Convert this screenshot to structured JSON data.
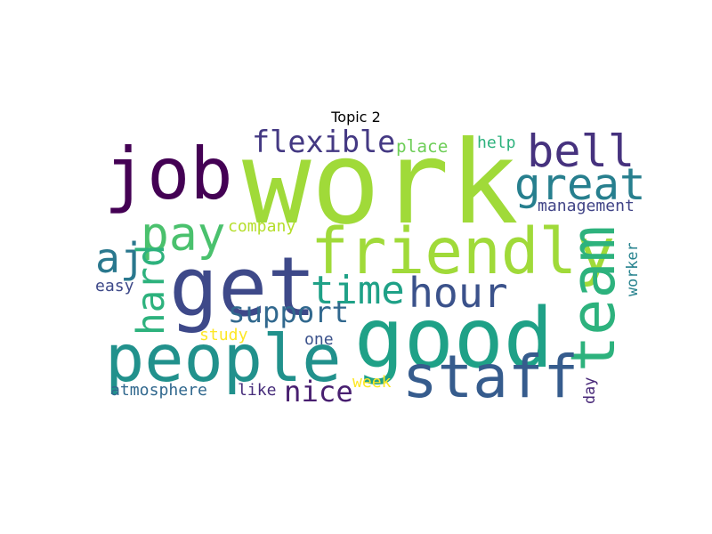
{
  "chart_data": {
    "type": "wordcloud",
    "title": "Topic 2",
    "words": [
      {
        "text": "work",
        "weight": 100,
        "color": "#a0da39",
        "orientation": "horizontal"
      },
      {
        "text": "good",
        "weight": 72,
        "color": "#1fa187",
        "orientation": "horizontal"
      },
      {
        "text": "get",
        "weight": 71,
        "color": "#3e4989",
        "orientation": "horizontal"
      },
      {
        "text": "job",
        "weight": 62,
        "color": "#440154",
        "orientation": "horizontal"
      },
      {
        "text": "people",
        "weight": 57,
        "color": "#21918c",
        "orientation": "horizontal"
      },
      {
        "text": "friendly",
        "weight": 55,
        "color": "#a0da39",
        "orientation": "horizontal"
      },
      {
        "text": "team",
        "weight": 53,
        "color": "#2db27d",
        "orientation": "vertical"
      },
      {
        "text": "staff",
        "weight": 51,
        "color": "#365c8d",
        "orientation": "horizontal"
      },
      {
        "text": "pay",
        "weight": 41,
        "color": "#4ac16d",
        "orientation": "horizontal"
      },
      {
        "text": "bell",
        "weight": 39,
        "color": "#46327e",
        "orientation": "horizontal"
      },
      {
        "text": "great",
        "weight": 38,
        "color": "#277f8e",
        "orientation": "horizontal"
      },
      {
        "text": "aj",
        "weight": 36,
        "color": "#2a788e",
        "orientation": "horizontal"
      },
      {
        "text": "hour",
        "weight": 36,
        "color": "#3b528b",
        "orientation": "horizontal"
      },
      {
        "text": "time",
        "weight": 34,
        "color": "#1fa187",
        "orientation": "horizontal"
      },
      {
        "text": "hard",
        "weight": 33,
        "color": "#2db27d",
        "orientation": "vertical"
      },
      {
        "text": "flexible",
        "weight": 26,
        "color": "#443983",
        "orientation": "horizontal"
      },
      {
        "text": "support",
        "weight": 25,
        "color": "#31688e",
        "orientation": "horizontal"
      },
      {
        "text": "nice",
        "weight": 25,
        "color": "#481f70",
        "orientation": "horizontal"
      },
      {
        "text": "place",
        "weight": 15,
        "color": "#6ece58",
        "orientation": "horizontal"
      },
      {
        "text": "help",
        "weight": 14,
        "color": "#2db27d",
        "orientation": "horizontal"
      },
      {
        "text": "management",
        "weight": 14,
        "color": "#414487",
        "orientation": "horizontal"
      },
      {
        "text": "company",
        "weight": 14,
        "color": "#b5de2b",
        "orientation": "horizontal"
      },
      {
        "text": "easy",
        "weight": 14,
        "color": "#3e4989",
        "orientation": "horizontal"
      },
      {
        "text": "worker",
        "weight": 13,
        "color": "#26828e",
        "orientation": "vertical"
      },
      {
        "text": "study",
        "weight": 14,
        "color": "#fde725",
        "orientation": "horizontal"
      },
      {
        "text": "one",
        "weight": 14,
        "color": "#3b528b",
        "orientation": "horizontal"
      },
      {
        "text": "atmosphere",
        "weight": 14,
        "color": "#31688e",
        "orientation": "horizontal"
      },
      {
        "text": "like",
        "weight": 14,
        "color": "#472d7b",
        "orientation": "horizontal"
      },
      {
        "text": "week",
        "weight": 14,
        "color": "#fde725",
        "orientation": "horizontal"
      },
      {
        "text": "day",
        "weight": 13,
        "color": "#482878",
        "orientation": "vertical"
      }
    ]
  }
}
